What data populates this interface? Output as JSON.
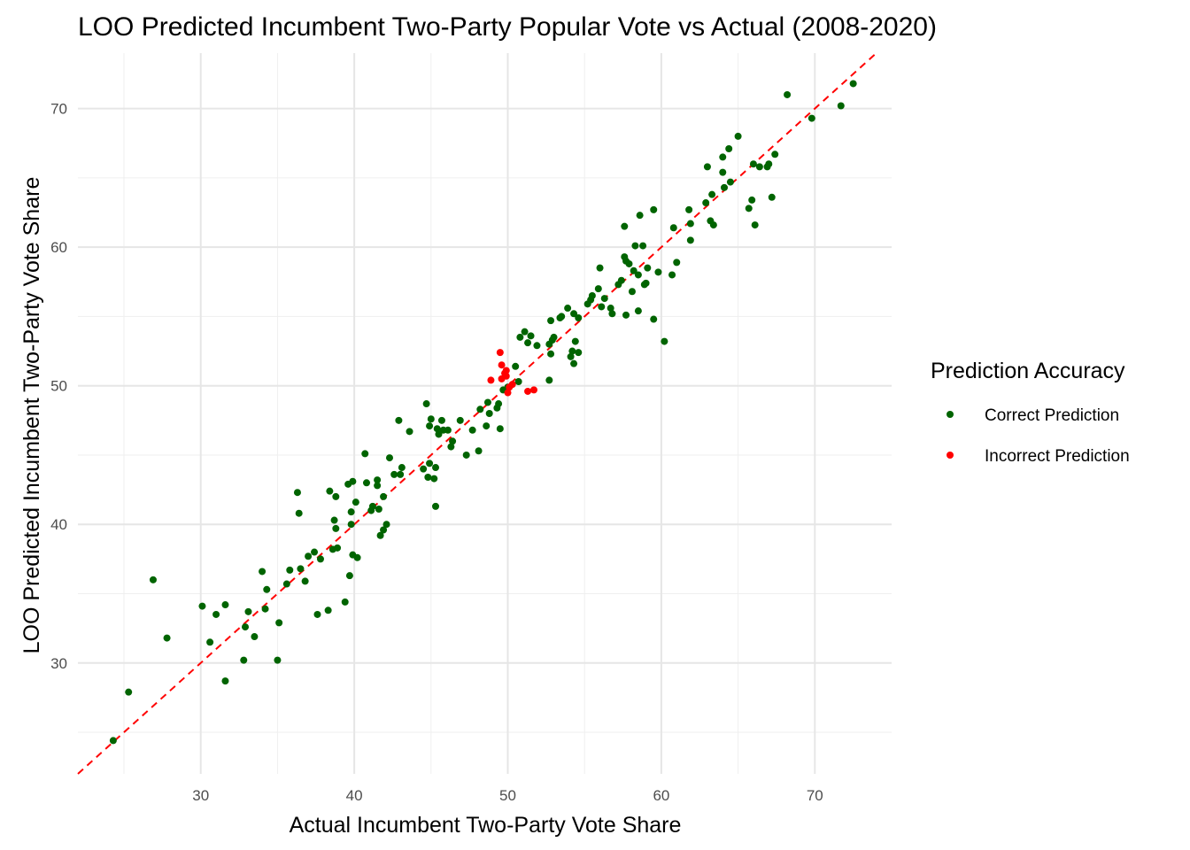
{
  "chart_data": {
    "type": "scatter",
    "title": "LOO Predicted Incumbent Two-Party Popular Vote vs Actual (2008-2020)",
    "xlabel": "Actual Incumbent Two-Party Vote Share",
    "ylabel": "LOO Predicted Incumbent Two-Party Vote Share",
    "xlim": [
      22,
      75
    ],
    "ylim": [
      22,
      74
    ],
    "x_ticks": [
      30,
      40,
      50,
      60,
      70
    ],
    "y_ticks": [
      30,
      40,
      50,
      60,
      70
    ],
    "grid": true,
    "reference_line": {
      "type": "identity",
      "color": "#ff0000",
      "style": "dashed"
    },
    "legend": {
      "title": "Prediction Accuracy",
      "position": "right",
      "entries": [
        {
          "label": "Correct Prediction",
          "color": "#006400"
        },
        {
          "label": "Incorrect Prediction",
          "color": "#ff0000"
        }
      ]
    },
    "series": [
      {
        "name": "Correct Prediction",
        "color": "#006400",
        "points": [
          [
            24.3,
            24.4
          ],
          [
            25.3,
            27.9
          ],
          [
            26.9,
            36.0
          ],
          [
            27.8,
            31.8
          ],
          [
            30.1,
            34.1
          ],
          [
            30.6,
            31.5
          ],
          [
            31.0,
            33.5
          ],
          [
            31.6,
            28.7
          ],
          [
            31.6,
            34.2
          ],
          [
            32.8,
            30.2
          ],
          [
            32.9,
            32.6
          ],
          [
            33.1,
            33.7
          ],
          [
            33.5,
            31.9
          ],
          [
            34.0,
            36.6
          ],
          [
            34.2,
            33.9
          ],
          [
            34.3,
            35.3
          ],
          [
            35.0,
            30.2
          ],
          [
            35.1,
            32.9
          ],
          [
            35.6,
            35.7
          ],
          [
            35.8,
            36.7
          ],
          [
            36.3,
            42.3
          ],
          [
            36.4,
            40.8
          ],
          [
            36.5,
            36.8
          ],
          [
            36.8,
            35.9
          ],
          [
            37.0,
            37.7
          ],
          [
            37.4,
            38.0
          ],
          [
            37.6,
            33.5
          ],
          [
            37.8,
            37.5
          ],
          [
            38.3,
            33.8
          ],
          [
            38.4,
            42.4
          ],
          [
            38.6,
            38.2
          ],
          [
            38.7,
            40.3
          ],
          [
            38.8,
            39.7
          ],
          [
            38.8,
            42.0
          ],
          [
            38.9,
            38.3
          ],
          [
            39.4,
            34.4
          ],
          [
            39.6,
            42.9
          ],
          [
            39.7,
            36.3
          ],
          [
            39.8,
            40.0
          ],
          [
            39.8,
            40.9
          ],
          [
            39.9,
            43.1
          ],
          [
            39.9,
            37.8
          ],
          [
            40.1,
            41.6
          ],
          [
            40.2,
            37.6
          ],
          [
            40.7,
            45.1
          ],
          [
            40.8,
            43.0
          ],
          [
            41.1,
            41.0
          ],
          [
            41.2,
            41.3
          ],
          [
            41.5,
            42.8
          ],
          [
            41.5,
            43.2
          ],
          [
            41.6,
            41.1
          ],
          [
            41.7,
            39.2
          ],
          [
            41.9,
            42.0
          ],
          [
            41.9,
            39.6
          ],
          [
            42.1,
            40.0
          ],
          [
            42.3,
            44.8
          ],
          [
            42.6,
            43.6
          ],
          [
            42.9,
            47.5
          ],
          [
            43.0,
            43.6
          ],
          [
            43.1,
            44.1
          ],
          [
            43.6,
            46.7
          ],
          [
            44.5,
            44.0
          ],
          [
            44.7,
            48.7
          ],
          [
            44.8,
            43.4
          ],
          [
            44.9,
            44.4
          ],
          [
            44.9,
            47.1
          ],
          [
            45.0,
            47.6
          ],
          [
            45.2,
            43.3
          ],
          [
            45.3,
            44.1
          ],
          [
            45.3,
            41.3
          ],
          [
            45.4,
            46.9
          ],
          [
            45.5,
            46.5
          ],
          [
            45.7,
            47.5
          ],
          [
            45.8,
            46.8
          ],
          [
            46.1,
            46.8
          ],
          [
            46.3,
            45.6
          ],
          [
            46.4,
            46.0
          ],
          [
            46.9,
            47.5
          ],
          [
            47.3,
            45.0
          ],
          [
            47.7,
            46.8
          ],
          [
            48.1,
            45.3
          ],
          [
            48.2,
            48.3
          ],
          [
            48.6,
            47.1
          ],
          [
            48.7,
            48.8
          ],
          [
            48.8,
            48.0
          ],
          [
            49.3,
            48.4
          ],
          [
            49.4,
            48.7
          ],
          [
            49.5,
            46.9
          ],
          [
            49.7,
            49.7
          ],
          [
            50.0,
            49.9
          ],
          [
            50.5,
            51.4
          ],
          [
            50.7,
            50.3
          ],
          [
            50.8,
            53.5
          ],
          [
            51.1,
            53.9
          ],
          [
            51.3,
            53.1
          ],
          [
            51.5,
            53.6
          ],
          [
            51.9,
            52.9
          ],
          [
            52.7,
            53.0
          ],
          [
            52.7,
            50.4
          ],
          [
            52.8,
            54.7
          ],
          [
            52.8,
            52.3
          ],
          [
            52.9,
            53.3
          ],
          [
            53.0,
            53.5
          ],
          [
            53.4,
            54.9
          ],
          [
            53.5,
            55.0
          ],
          [
            53.9,
            55.6
          ],
          [
            54.1,
            52.1
          ],
          [
            54.2,
            52.5
          ],
          [
            54.3,
            51.6
          ],
          [
            54.3,
            55.2
          ],
          [
            54.4,
            53.2
          ],
          [
            54.6,
            54.9
          ],
          [
            54.6,
            52.4
          ],
          [
            55.2,
            55.9
          ],
          [
            55.4,
            56.2
          ],
          [
            55.5,
            56.5
          ],
          [
            55.9,
            57.0
          ],
          [
            56.0,
            58.5
          ],
          [
            56.1,
            55.7
          ],
          [
            56.3,
            56.3
          ],
          [
            56.7,
            55.6
          ],
          [
            56.8,
            55.2
          ],
          [
            57.2,
            57.3
          ],
          [
            57.4,
            57.6
          ],
          [
            57.6,
            59.3
          ],
          [
            57.6,
            61.5
          ],
          [
            57.7,
            59.0
          ],
          [
            57.7,
            55.1
          ],
          [
            57.9,
            58.8
          ],
          [
            58.1,
            56.8
          ],
          [
            58.2,
            58.3
          ],
          [
            58.3,
            60.1
          ],
          [
            58.5,
            58.0
          ],
          [
            58.5,
            55.4
          ],
          [
            58.6,
            62.3
          ],
          [
            58.8,
            60.1
          ],
          [
            58.9,
            57.3
          ],
          [
            59.0,
            57.4
          ],
          [
            59.1,
            58.5
          ],
          [
            59.5,
            62.7
          ],
          [
            59.5,
            54.8
          ],
          [
            59.8,
            58.2
          ],
          [
            60.2,
            53.2
          ],
          [
            60.7,
            58.0
          ],
          [
            60.8,
            61.4
          ],
          [
            61.0,
            58.9
          ],
          [
            61.8,
            62.7
          ],
          [
            61.9,
            60.5
          ],
          [
            61.9,
            61.7
          ],
          [
            62.9,
            63.2
          ],
          [
            63.0,
            65.8
          ],
          [
            63.2,
            61.9
          ],
          [
            63.3,
            63.8
          ],
          [
            63.4,
            61.6
          ],
          [
            64.0,
            66.5
          ],
          [
            64.0,
            65.4
          ],
          [
            64.1,
            64.3
          ],
          [
            64.4,
            67.1
          ],
          [
            64.5,
            64.7
          ],
          [
            65.0,
            68.0
          ],
          [
            65.7,
            62.8
          ],
          [
            65.9,
            63.4
          ],
          [
            66.0,
            66.0
          ],
          [
            66.1,
            61.6
          ],
          [
            66.4,
            65.8
          ],
          [
            66.9,
            65.8
          ],
          [
            67.0,
            66.0
          ],
          [
            67.2,
            63.6
          ],
          [
            67.4,
            66.7
          ],
          [
            68.2,
            71.0
          ],
          [
            69.8,
            69.3
          ],
          [
            71.7,
            70.2
          ],
          [
            72.5,
            71.8
          ]
        ]
      },
      {
        "name": "Incorrect Prediction",
        "color": "#ff0000",
        "points": [
          [
            48.9,
            50.4
          ],
          [
            49.5,
            52.4
          ],
          [
            49.6,
            51.5
          ],
          [
            49.6,
            50.5
          ],
          [
            49.8,
            50.9
          ],
          [
            49.9,
            50.7
          ],
          [
            49.9,
            51.1
          ],
          [
            50.0,
            49.5
          ],
          [
            50.1,
            49.9
          ],
          [
            50.3,
            50.1
          ],
          [
            51.3,
            49.6
          ],
          [
            51.7,
            49.7
          ]
        ]
      }
    ]
  }
}
